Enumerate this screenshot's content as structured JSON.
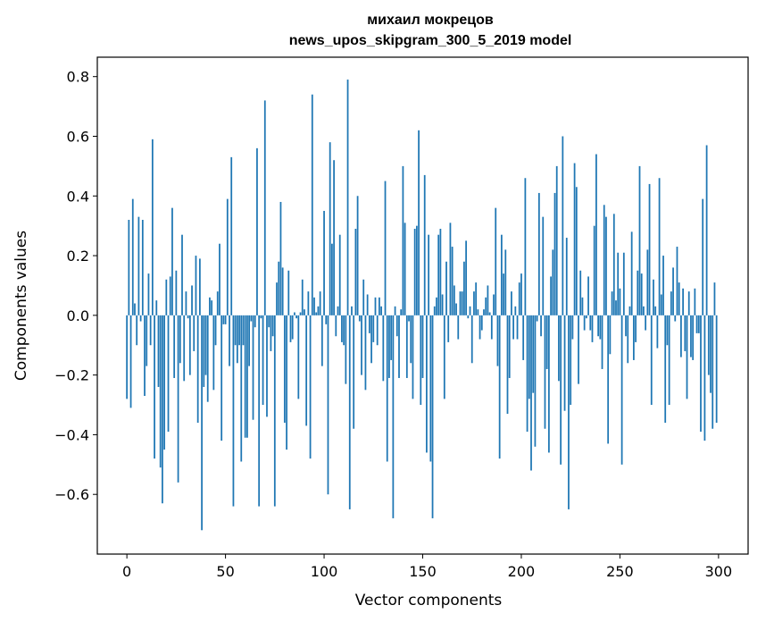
{
  "chart_data": {
    "type": "bar",
    "title": "михаил мокрецов",
    "subtitle": "news_upos_skipgram_300_5_2019 model",
    "xlabel": "Vector components",
    "ylabel": "Components values",
    "xlim": [
      -15,
      315
    ],
    "ylim": [
      -0.8,
      0.865
    ],
    "xticks": [
      0,
      50,
      100,
      150,
      200,
      250,
      300
    ],
    "yticks": [
      -0.6,
      -0.4,
      -0.2,
      0.0,
      0.2,
      0.4,
      0.6,
      0.8
    ],
    "ytick_labels": [
      "−0.6",
      "−0.4",
      "−0.2",
      "0.0",
      "0.2",
      "0.4",
      "0.6",
      "0.8"
    ],
    "bar_color": "#1f77b4",
    "x": "0..299",
    "values": [
      -0.28,
      0.32,
      -0.31,
      0.39,
      0.04,
      -0.1,
      0.33,
      -0.02,
      0.32,
      -0.27,
      -0.17,
      0.14,
      -0.1,
      0.59,
      -0.48,
      0.05,
      -0.24,
      -0.51,
      -0.63,
      -0.45,
      0.12,
      -0.39,
      0.13,
      0.36,
      -0.21,
      0.15,
      -0.56,
      -0.16,
      0.27,
      -0.22,
      0.08,
      -0.01,
      -0.2,
      0.1,
      -0.12,
      0.2,
      -0.36,
      0.19,
      -0.72,
      -0.24,
      -0.2,
      -0.29,
      0.06,
      0.05,
      -0.25,
      -0.1,
      0.08,
      0.24,
      -0.42,
      -0.03,
      -0.03,
      0.39,
      -0.17,
      0.53,
      -0.64,
      -0.1,
      -0.16,
      -0.1,
      -0.49,
      -0.1,
      -0.41,
      -0.41,
      -0.17,
      -0.02,
      -0.35,
      -0.04,
      0.56,
      -0.64,
      -0.01,
      -0.3,
      0.72,
      -0.34,
      -0.04,
      -0.12,
      -0.07,
      -0.64,
      0.11,
      0.18,
      0.38,
      0.16,
      -0.36,
      -0.45,
      0.15,
      -0.09,
      -0.08,
      0.01,
      -0.01,
      -0.28,
      0.01,
      0.12,
      0.02,
      -0.37,
      0.08,
      -0.48,
      0.74,
      0.06,
      0.01,
      0.03,
      0.08,
      -0.17,
      0.35,
      -0.03,
      -0.6,
      0.58,
      0.24,
      0.52,
      -0.07,
      0.03,
      0.27,
      -0.09,
      -0.1,
      -0.23,
      0.79,
      -0.65,
      0.03,
      -0.38,
      0.29,
      0.4,
      -0.02,
      -0.2,
      0.12,
      -0.25,
      0.07,
      -0.06,
      -0.16,
      -0.09,
      0.06,
      -0.1,
      0.06,
      0.03,
      -0.22,
      0.45,
      -0.49,
      -0.21,
      -0.15,
      -0.68,
      0.03,
      -0.07,
      -0.21,
      0.02,
      0.5,
      0.31,
      -0.21,
      -0.02,
      -0.16,
      -0.28,
      0.29,
      0.3,
      0.62,
      -0.3,
      -0.21,
      0.47,
      -0.46,
      0.27,
      -0.49,
      -0.68,
      0.03,
      0.06,
      0.27,
      0.29,
      0.07,
      -0.28,
      0.18,
      -0.09,
      0.31,
      0.23,
      0.1,
      0.04,
      -0.08,
      0.08,
      0.08,
      0.18,
      0.25,
      -0.01,
      0.03,
      -0.16,
      0.08,
      0.11,
      0.02,
      -0.08,
      -0.05,
      0.02,
      0.06,
      0.1,
      0.01,
      -0.08,
      0.07,
      0.36,
      -0.17,
      -0.48,
      0.27,
      0.14,
      0.22,
      -0.33,
      -0.21,
      0.08,
      -0.08,
      0.03,
      -0.08,
      0.11,
      0.14,
      -0.15,
      0.46,
      -0.39,
      -0.28,
      -0.52,
      -0.26,
      -0.44,
      -0.02,
      0.41,
      -0.07,
      0.33,
      -0.38,
      -0.18,
      -0.46,
      0.13,
      0.22,
      0.41,
      0.5,
      -0.22,
      -0.5,
      0.6,
      -0.32,
      0.26,
      -0.65,
      -0.3,
      -0.08,
      0.51,
      0.43,
      -0.23,
      0.15,
      0.06,
      -0.05,
      -0.01,
      0.13,
      -0.05,
      -0.09,
      0.3,
      0.54,
      -0.07,
      -0.08,
      -0.18,
      0.37,
      0.33,
      -0.43,
      -0.13,
      0.08,
      0.34,
      0.05,
      0.21,
      0.09,
      -0.5,
      0.21,
      -0.07,
      -0.16,
      0.03,
      0.28,
      -0.15,
      -0.09,
      0.15,
      0.5,
      0.14,
      0.03,
      -0.05,
      0.22,
      0.44,
      -0.3,
      0.12,
      0.03,
      -0.11,
      0.46,
      0.07,
      0.2,
      -0.36,
      -0.1,
      -0.3,
      0.08,
      0.16,
      -0.02,
      0.23,
      0.11,
      -0.14,
      0.09,
      -0.12,
      -0.28,
      0.08,
      -0.14,
      -0.15,
      0.09,
      -0.06,
      -0.06,
      -0.39,
      0.39,
      -0.42,
      0.57,
      -0.2,
      -0.26,
      -0.38,
      0.11,
      -0.36
    ]
  }
}
